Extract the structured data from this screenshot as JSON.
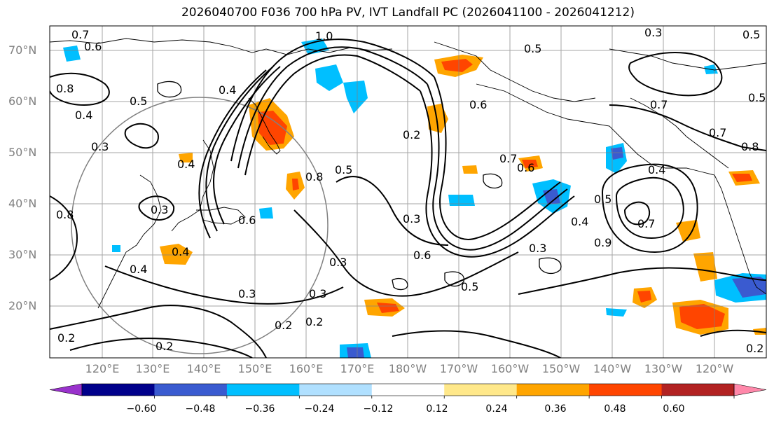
{
  "figure": {
    "title": "2026040700 F036 700 hPa PV, IVT Landfall PC (2026041100 - 2026041212)"
  },
  "axes": {
    "lat_labels": [
      "70°N",
      "60°N",
      "50°N",
      "40°N",
      "30°N",
      "20°N"
    ],
    "lon_labels": [
      "120°E",
      "130°E",
      "140°E",
      "150°E",
      "160°E",
      "170°E",
      "180°W",
      "170°W",
      "160°W",
      "150°W",
      "140°W",
      "130°W",
      "120°W"
    ],
    "lat_range": [
      10,
      75
    ],
    "lon_range_east": [
      110,
      250
    ]
  },
  "colorbar": {
    "ticks": [
      "−0.60",
      "−0.48",
      "−0.36",
      "−0.24",
      "−0.12",
      "0.12",
      "0.24",
      "0.36",
      "0.48",
      "0.60"
    ],
    "tick_values": [
      -0.6,
      -0.48,
      -0.36,
      -0.24,
      -0.12,
      0.12,
      0.24,
      0.36,
      0.48,
      0.6
    ],
    "colors": [
      "#9932cc",
      "#00008b",
      "#3a5bd0",
      "#00bfff",
      "#b0e0ff",
      "#ffffff",
      "#ffe88a",
      "#ffa500",
      "#ff4500",
      "#b22222",
      "#ff88aa"
    ],
    "extend": "both"
  },
  "contour_labels": [
    {
      "text": "0.7"
    },
    {
      "text": "0.6"
    },
    {
      "text": "1.0"
    },
    {
      "text": "0.5"
    },
    {
      "text": "0.4"
    },
    {
      "text": "0.8"
    },
    {
      "text": "0.4"
    },
    {
      "text": "0.5"
    },
    {
      "text": "0.6"
    },
    {
      "text": "0.3"
    },
    {
      "text": "0.4"
    },
    {
      "text": "0.3"
    },
    {
      "text": "0.8"
    },
    {
      "text": "0.6"
    },
    {
      "text": "0.4"
    },
    {
      "text": "0.3"
    },
    {
      "text": "0.2"
    },
    {
      "text": "0.5"
    },
    {
      "text": "0.3"
    },
    {
      "text": "0.6"
    },
    {
      "text": "0.2"
    },
    {
      "text": "0.5"
    },
    {
      "text": "0.3"
    },
    {
      "text": "0.7"
    },
    {
      "text": "0.6"
    },
    {
      "text": "0.4"
    },
    {
      "text": "0.5"
    },
    {
      "text": "0.7"
    },
    {
      "text": "0.9"
    },
    {
      "text": "0.3"
    },
    {
      "text": "0.4"
    },
    {
      "text": "0.8"
    },
    {
      "text": "0.2"
    },
    {
      "text": "0.4"
    },
    {
      "text": "0.7"
    },
    {
      "text": "0.8"
    },
    {
      "text": "0.3"
    },
    {
      "text": "0.5"
    },
    {
      "text": "0.7"
    },
    {
      "text": "0.2"
    },
    {
      "text": "0.2"
    },
    {
      "text": "0.3"
    },
    {
      "text": "0.2"
    },
    {
      "text": "0.5"
    }
  ]
}
